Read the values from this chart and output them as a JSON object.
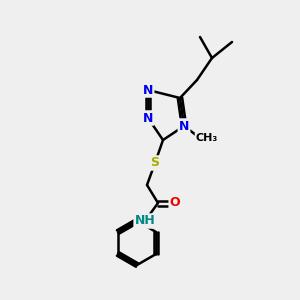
{
  "bg_color": "#efefef",
  "bond_color": "#000000",
  "bond_width": 1.8,
  "atom_colors": {
    "N": "#0000ee",
    "O": "#ee0000",
    "S": "#aaaa00",
    "H_label": "#008888",
    "C": "#000000"
  },
  "font_size_atoms": 9,
  "font_size_methyl": 8
}
